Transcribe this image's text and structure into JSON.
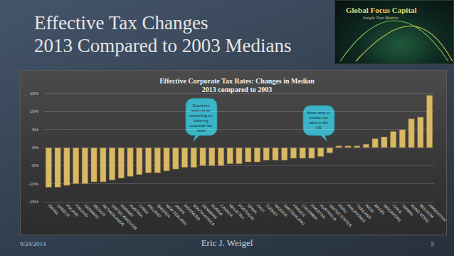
{
  "slide": {
    "title": [
      "Effective Tax Changes",
      "2013 Compared to 2003 Medians"
    ],
    "logo": [
      "Global Focus Capital",
      "Insight That Matters"
    ],
    "footer": {
      "date": "9/24/2014",
      "author": "Eric J. Weigel",
      "page": 5
    }
  },
  "chart_data": {
    "type": "bar",
    "title": "Effective Corporate Tax Rates: Changes in Median\n2013 compared to 2003",
    "categories": [
      "ISRAEL",
      "GREECE",
      "POLAND",
      "FINLAND",
      "GERMANY",
      "MEXICO",
      "NETHERLANDS",
      "UNITED KINGDOM",
      "NORWAY",
      "AUSTRIA",
      "CHINA",
      "IRELAND",
      "SWEDEN",
      "NEW ZEALAND",
      "JAPAN",
      "INDONESIA",
      "SOUTH AFRICA",
      "DENMARK",
      "RUSSIA",
      "CANADA",
      "MALAYSIA",
      "PORTUGAL",
      "SPAIN",
      "ITALY",
      "TURKEY",
      "NIGERIA",
      "SWITZERLAND",
      "FRANCE",
      "COLOMBIA",
      "PAKISTAN",
      "AUSTRALIA",
      "UNITED STATES",
      "PERU",
      "PHILIPPINES",
      "THAILAND",
      "INDIA",
      "BRAZIL",
      "SINGAPORE",
      "CHILE",
      "TAIWAN",
      "HONG KONG",
      "BELGIUM",
      "ARGENTINA"
    ],
    "values": [
      -11,
      -11,
      -10.5,
      -10,
      -10,
      -9.5,
      -9.5,
      -9,
      -8.5,
      -8,
      -7.5,
      -7,
      -7,
      -6.5,
      -6,
      -5.5,
      -5.5,
      -5,
      -5,
      -5,
      -4.5,
      -4.5,
      -4,
      -4,
      -3.5,
      -3.5,
      -3.5,
      -3,
      -3,
      -3,
      -2.5,
      -1.5,
      0.5,
      0.5,
      0.5,
      1,
      2.5,
      3,
      4.5,
      5,
      8,
      8.5,
      14.5
    ],
    "color": "#d9b866",
    "ylim": [
      -15,
      15
    ],
    "yticks": [
      {
        "value": -15,
        "label": "-15%"
      },
      {
        "value": -10,
        "label": "-10%"
      },
      {
        "value": -5,
        "label": "-5%"
      },
      {
        "value": 0,
        "label": "0%"
      },
      {
        "value": 5,
        "label": "5%"
      },
      {
        "value": 10,
        "label": "10%"
      },
      {
        "value": 15,
        "label": "15%"
      }
    ],
    "grid": true,
    "annotations": [
      {
        "text": "Countries seem to be competing on lowering corporate tax rates"
      },
      {
        "text": "Minor drop in median tax rates in the US"
      }
    ]
  }
}
